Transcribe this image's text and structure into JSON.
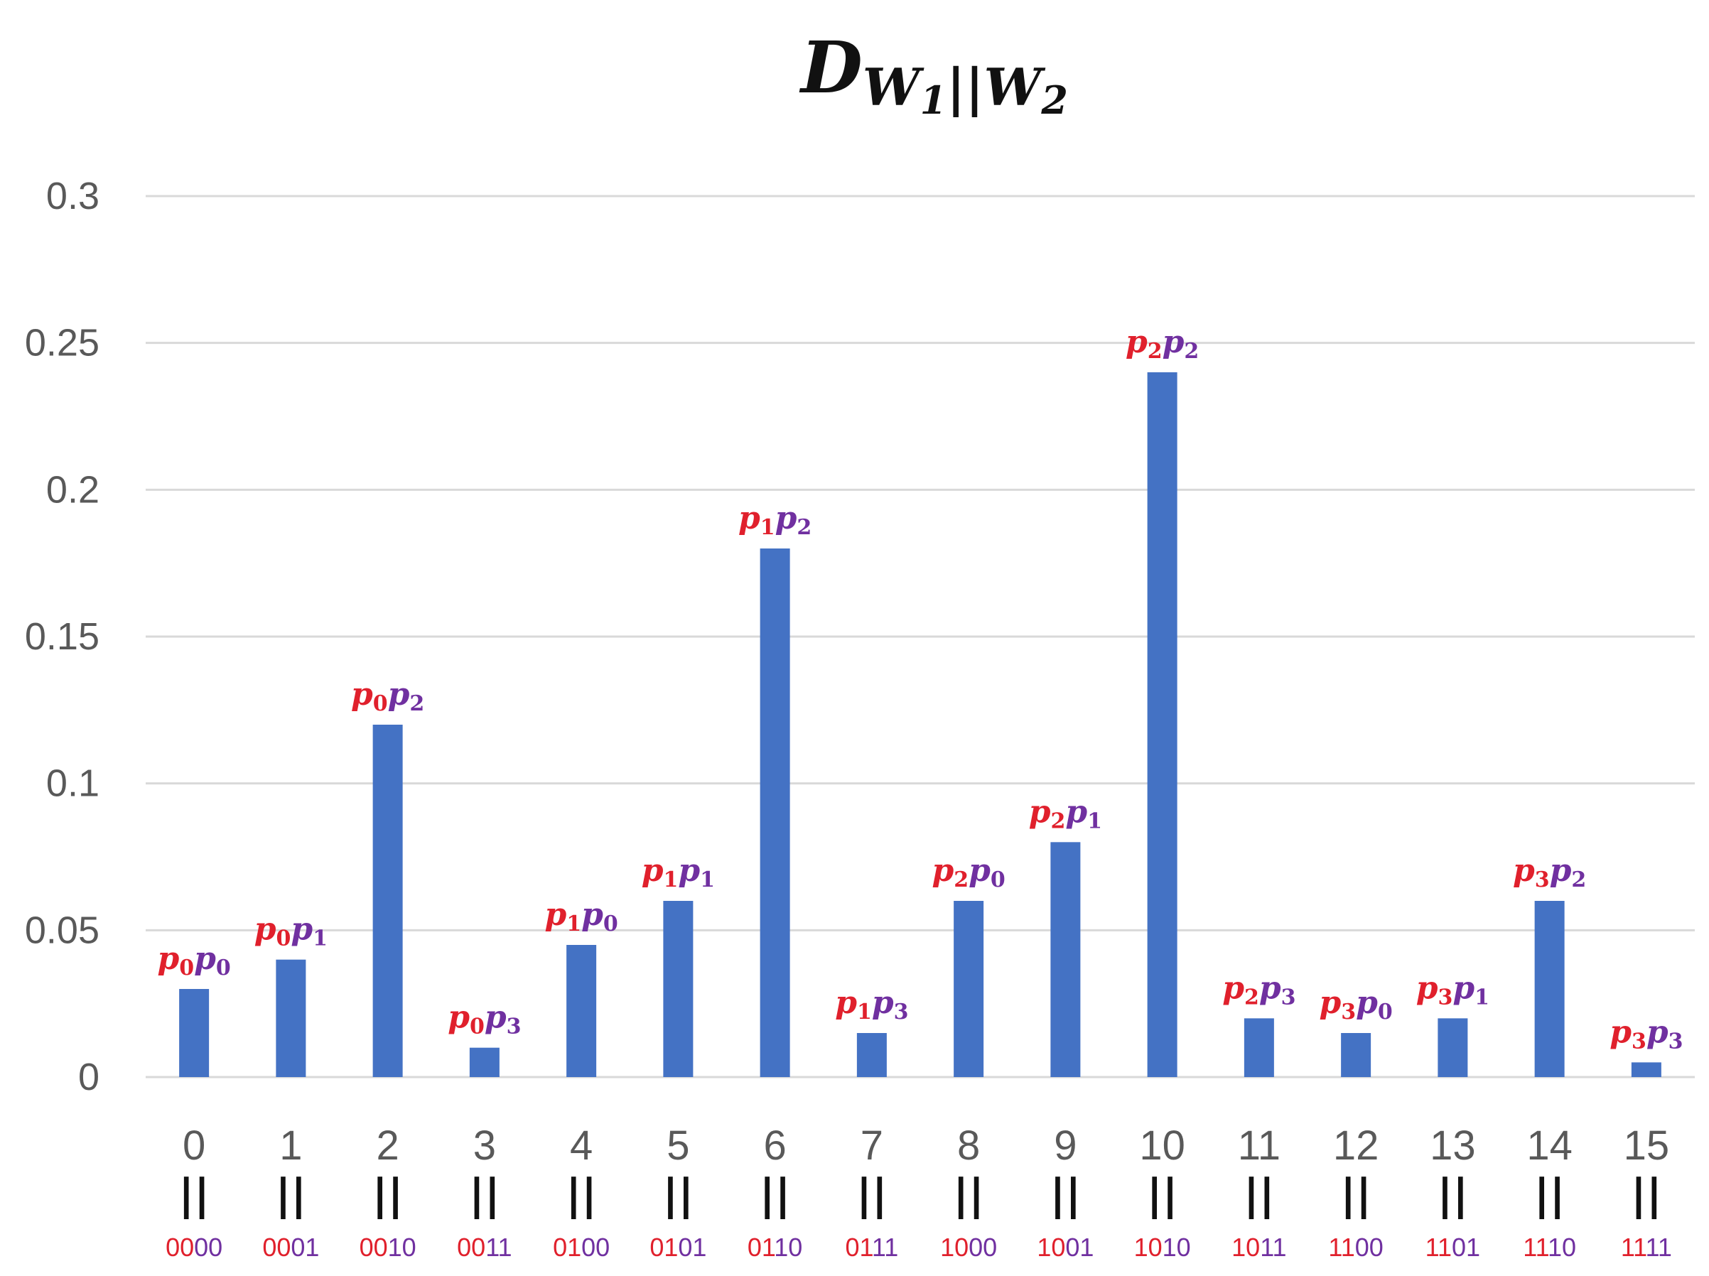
{
  "colors": {
    "bar": "#4472c4",
    "grid": "#d9d9d9",
    "axis_text": "#595959",
    "first_symbol": "#e0202c",
    "second_symbol": "#7030a0"
  },
  "chart_data": {
    "type": "bar",
    "title": {
      "main": "D",
      "sub_left": "W",
      "sub_left_index": "1",
      "separator": "||",
      "sub_right": "W",
      "sub_right_index": "2"
    },
    "xlabel": "",
    "ylabel": "",
    "ylim": [
      0,
      0.3
    ],
    "yticks": [
      "0",
      "0.05",
      "0.1",
      "0.15",
      "0.2",
      "0.25",
      "0.3"
    ],
    "grid": true,
    "legend": "none",
    "categories": [
      "0",
      "1",
      "2",
      "3",
      "4",
      "5",
      "6",
      "7",
      "8",
      "9",
      "10",
      "11",
      "12",
      "13",
      "14",
      "15"
    ],
    "values": [
      0.03,
      0.04,
      0.12,
      0.01,
      0.045,
      0.06,
      0.18,
      0.015,
      0.06,
      0.08,
      0.24,
      0.02,
      0.015,
      0.02,
      0.06,
      0.005
    ],
    "equals_sign": "||",
    "binary_codes": [
      {
        "first": "00",
        "second": "00"
      },
      {
        "first": "00",
        "second": "01"
      },
      {
        "first": "00",
        "second": "10"
      },
      {
        "first": "00",
        "second": "11"
      },
      {
        "first": "01",
        "second": "00"
      },
      {
        "first": "01",
        "second": "01"
      },
      {
        "first": "01",
        "second": "10"
      },
      {
        "first": "01",
        "second": "11"
      },
      {
        "first": "10",
        "second": "00"
      },
      {
        "first": "10",
        "second": "01"
      },
      {
        "first": "10",
        "second": "10"
      },
      {
        "first": "10",
        "second": "11"
      },
      {
        "first": "11",
        "second": "00"
      },
      {
        "first": "11",
        "second": "01"
      },
      {
        "first": "11",
        "second": "10"
      },
      {
        "first": "11",
        "second": "11"
      }
    ],
    "bar_labels": [
      {
        "first": "p",
        "first_index": "0",
        "second": "p",
        "second_index": "0"
      },
      {
        "first": "p",
        "first_index": "0",
        "second": "p",
        "second_index": "1"
      },
      {
        "first": "p",
        "first_index": "0",
        "second": "p",
        "second_index": "2"
      },
      {
        "first": "p",
        "first_index": "0",
        "second": "p",
        "second_index": "3"
      },
      {
        "first": "p",
        "first_index": "1",
        "second": "p",
        "second_index": "0"
      },
      {
        "first": "p",
        "first_index": "1",
        "second": "p",
        "second_index": "1"
      },
      {
        "first": "p",
        "first_index": "1",
        "second": "p",
        "second_index": "2"
      },
      {
        "first": "p",
        "first_index": "1",
        "second": "p",
        "second_index": "3"
      },
      {
        "first": "p",
        "first_index": "2",
        "second": "p",
        "second_index": "0"
      },
      {
        "first": "p",
        "first_index": "2",
        "second": "p",
        "second_index": "1"
      },
      {
        "first": "p",
        "first_index": "2",
        "second": "p",
        "second_index": "2"
      },
      {
        "first": "p",
        "first_index": "2",
        "second": "p",
        "second_index": "3"
      },
      {
        "first": "p",
        "first_index": "3",
        "second": "p",
        "second_index": "0"
      },
      {
        "first": "p",
        "first_index": "3",
        "second": "p",
        "second_index": "1"
      },
      {
        "first": "p",
        "first_index": "3",
        "second": "p",
        "second_index": "2"
      },
      {
        "first": "p",
        "first_index": "3",
        "second": "p",
        "second_index": "3"
      }
    ]
  }
}
